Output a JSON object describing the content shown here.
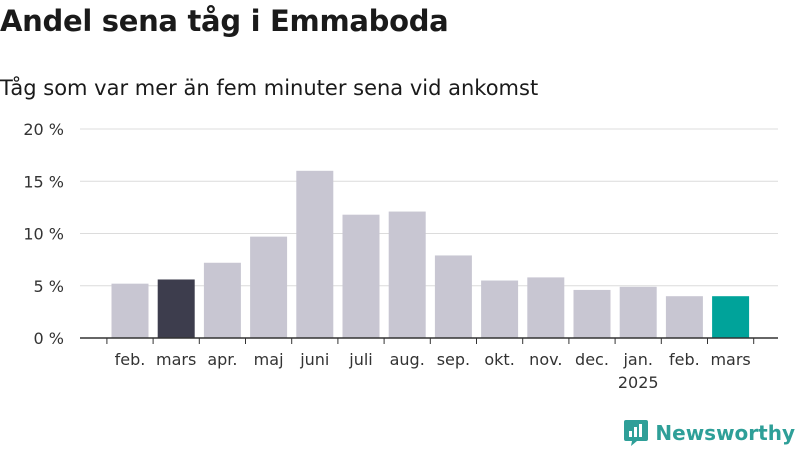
{
  "title": "Andel sena tåg i Emmaboda",
  "subtitle": "Tåg som var mer än fem minuter sena vid ankomst",
  "brand": "Newsworthy",
  "colors": {
    "bar": "#c8c6d2",
    "bar_prev_year": "#3d3d4d",
    "bar_current": "#00a39a",
    "grid": "#dcdcdc",
    "axis": "#333333",
    "brand": "#2e9f98"
  },
  "chart_data": {
    "type": "bar",
    "title": "Andel sena tåg i Emmaboda",
    "subtitle": "Tåg som var mer än fem minuter sena vid ankomst",
    "xlabel": "",
    "ylabel": "",
    "ylim": [
      0,
      20
    ],
    "yticks": [
      "0 %",
      "5 %",
      "10 %",
      "15 %",
      "20 %"
    ],
    "ytick_values": [
      0,
      5,
      10,
      15,
      20
    ],
    "grid": true,
    "categories": [
      "feb.",
      "mars",
      "apr.",
      "maj",
      "juni",
      "juli",
      "aug.",
      "sep.",
      "okt.",
      "nov.",
      "dec.",
      "jan.",
      "feb.",
      "mars"
    ],
    "year_labels": [
      "",
      "",
      "",
      "",
      "",
      "",
      "",
      "",
      "",
      "",
      "",
      "2025",
      "",
      ""
    ],
    "values": [
      5.2,
      5.6,
      7.2,
      9.7,
      16.0,
      11.8,
      12.1,
      7.9,
      5.5,
      5.8,
      4.6,
      4.9,
      4.0,
      4.0
    ],
    "highlight": [
      "",
      "prev_year",
      "",
      "",
      "",
      "",
      "",
      "",
      "",
      "",
      "",
      "",
      "",
      "current"
    ]
  }
}
